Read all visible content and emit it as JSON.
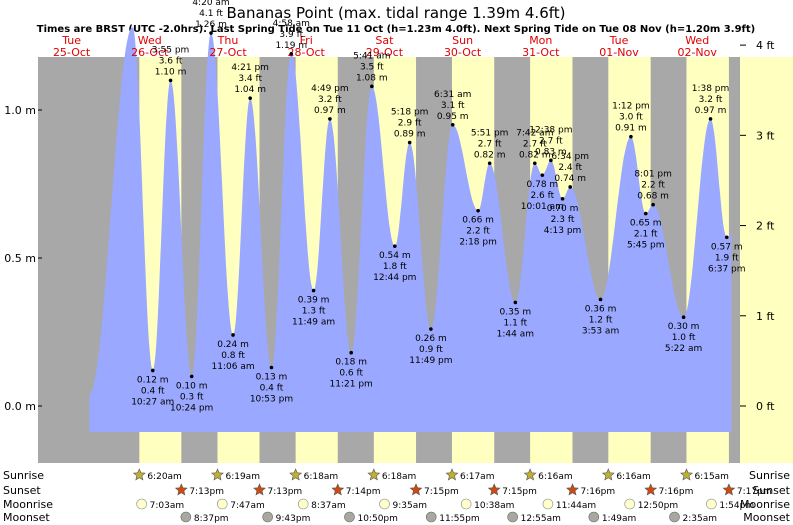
{
  "chart_data": {
    "type": "area",
    "title": "Bananas Point (max. tidal range 1.39m 4.6ft)",
    "subtitle": "Times are BRST (UTC -2.0hrs). Last Spring Tide on Tue 11 Oct (h=1.23m 4.0ft). Next Spring Tide on Tue 08 Nov (h=1.20m 3.9ft)",
    "xlabel": "",
    "ylabel_left_unit": "m",
    "ylabel_right_unit": "ft",
    "ylim": [
      -0.13,
      1.42
    ],
    "xlim_hours": [
      0,
      216
    ],
    "grid": false,
    "legend": "none",
    "colors": {
      "water": "#9aa8ff",
      "day": "#ffffc0",
      "night": "#a8a8a8",
      "red_text": "#e00000",
      "sun_star": "#c0b030",
      "sunset_star": "#d04a10",
      "moon_light": "#ffffcc",
      "moon_dark": "#a8a8a0"
    },
    "days": [
      {
        "dow": "Tue",
        "date": "25-Oct"
      },
      {
        "dow": "Wed",
        "date": "26-Oct"
      },
      {
        "dow": "Thu",
        "date": "27-Oct"
      },
      {
        "dow": "Fri",
        "date": "28-Oct"
      },
      {
        "dow": "Sat",
        "date": "29-Oct"
      },
      {
        "dow": "Sun",
        "date": "30-Oct"
      },
      {
        "dow": "Mon",
        "date": "31-Oct"
      },
      {
        "dow": "Tue",
        "date": "01-Nov"
      },
      {
        "dow": "Wed",
        "date": "02-Nov"
      }
    ],
    "y_ticks_m": [
      {
        "v": 0.0,
        "label": "0.0 m"
      },
      {
        "v": 0.5,
        "label": "0.5 m"
      },
      {
        "v": 1.0,
        "label": "1.0 m"
      }
    ],
    "y_ticks_ft": [
      {
        "v": 0.0,
        "label": "0 ft"
      },
      {
        "v": 0.3048,
        "label": "1 ft"
      },
      {
        "v": 0.6096,
        "label": "2 ft"
      },
      {
        "v": 0.9144,
        "label": "3 ft"
      },
      {
        "v": 1.2192,
        "label": "4 ft"
      }
    ],
    "tides": [
      {
        "type": "low",
        "day": 1,
        "time": "10:27 am",
        "m": 0.12,
        "ft": "0.4 ft",
        "lbl_m": "0.12 m"
      },
      {
        "type": "high",
        "day": 1,
        "time": "3:55 pm",
        "m": 1.1,
        "ft": "3.6 ft",
        "lbl_m": "1.10 m"
      },
      {
        "type": "low",
        "day": 1,
        "time": "10:24 pm",
        "m": 0.1,
        "ft": "0.3 ft",
        "lbl_m": "0.10 m"
      },
      {
        "type": "high",
        "day": 2,
        "time": "4:20 am",
        "m": 1.26,
        "ft": "4.1 ft",
        "lbl_m": "1.26 m"
      },
      {
        "type": "low",
        "day": 2,
        "time": "11:06 am",
        "m": 0.24,
        "ft": "0.8 ft",
        "lbl_m": "0.24 m"
      },
      {
        "type": "high",
        "day": 2,
        "time": "4:21 pm",
        "m": 1.04,
        "ft": "3.4 ft",
        "lbl_m": "1.04 m"
      },
      {
        "type": "low",
        "day": 2,
        "time": "10:53 pm",
        "m": 0.13,
        "ft": "0.4 ft",
        "lbl_m": "0.13 m"
      },
      {
        "type": "high",
        "day": 3,
        "time": "4:58 am",
        "m": 1.19,
        "ft": "3.9 ft",
        "lbl_m": "1.19 m"
      },
      {
        "type": "low",
        "day": 3,
        "time": "11:49 am",
        "m": 0.39,
        "ft": "1.3 ft",
        "lbl_m": "0.39 m"
      },
      {
        "type": "high",
        "day": 3,
        "time": "4:49 pm",
        "m": 0.97,
        "ft": "3.2 ft",
        "lbl_m": "0.97 m"
      },
      {
        "type": "low",
        "day": 3,
        "time": "11:21 pm",
        "m": 0.18,
        "ft": "0.6 ft",
        "lbl_m": "0.18 m"
      },
      {
        "type": "high",
        "day": 4,
        "time": "5:41 am",
        "m": 1.08,
        "ft": "3.5 ft",
        "lbl_m": "1.08 m"
      },
      {
        "type": "low",
        "day": 4,
        "time": "12:44 pm",
        "m": 0.54,
        "ft": "1.8 ft",
        "lbl_m": "0.54 m"
      },
      {
        "type": "high",
        "day": 4,
        "time": "5:18 pm",
        "m": 0.89,
        "ft": "2.9 ft",
        "lbl_m": "0.89 m"
      },
      {
        "type": "low",
        "day": 4,
        "time": "11:49 pm",
        "m": 0.26,
        "ft": "0.9 ft",
        "lbl_m": "0.26 m"
      },
      {
        "type": "high",
        "day": 5,
        "time": "6:31 am",
        "m": 0.95,
        "ft": "3.1 ft",
        "lbl_m": "0.95 m"
      },
      {
        "type": "low",
        "day": 5,
        "time": "2:18 pm",
        "m": 0.66,
        "ft": "2.2 ft",
        "lbl_m": "0.66 m"
      },
      {
        "type": "high",
        "day": 5,
        "time": "5:51 pm",
        "m": 0.82,
        "ft": "2.7 ft",
        "lbl_m": "0.82 m"
      },
      {
        "type": "low",
        "day": 6,
        "time": "1:44 am",
        "m": 0.35,
        "ft": "1.1 ft",
        "lbl_m": "0.35 m"
      },
      {
        "type": "high",
        "day": 6,
        "time": "7:42 am",
        "m": 0.82,
        "ft": "2.7 ft",
        "lbl_m": "0.82 m"
      },
      {
        "type": "low",
        "day": 6,
        "time": "10:01 am",
        "m": 0.78,
        "ft": "2.6 ft",
        "lbl_m": "0.78 m"
      },
      {
        "type": "high",
        "day": 6,
        "time": "12:38 pm",
        "m": 0.83,
        "ft": "2.7 ft",
        "lbl_m": "0.83 m"
      },
      {
        "type": "low",
        "day": 6,
        "time": "4:13 pm",
        "m": 0.7,
        "ft": "2.3 ft",
        "lbl_m": "0.70 m"
      },
      {
        "type": "high",
        "day": 6,
        "time": "6:34 pm",
        "m": 0.74,
        "ft": "2.4 ft",
        "lbl_m": "0.74 m"
      },
      {
        "type": "low",
        "day": 7,
        "time": "3:53 am",
        "m": 0.36,
        "ft": "1.2 ft",
        "lbl_m": "0.36 m"
      },
      {
        "type": "high",
        "day": 7,
        "time": "1:12 pm",
        "m": 0.91,
        "ft": "3.0 ft",
        "lbl_m": "0.91 m"
      },
      {
        "type": "low",
        "day": 7,
        "time": "5:45 pm",
        "m": 0.65,
        "ft": "2.1 ft",
        "lbl_m": "0.65 m"
      },
      {
        "type": "high",
        "day": 7,
        "time": "8:01 pm",
        "m": 0.68,
        "ft": "2.2 ft",
        "lbl_m": "0.68 m"
      },
      {
        "type": "low",
        "day": 8,
        "time": "5:22 am",
        "m": 0.3,
        "ft": "1.0 ft",
        "lbl_m": "0.30 m"
      },
      {
        "type": "high",
        "day": 8,
        "time": "1:38 pm",
        "m": 0.97,
        "ft": "3.2 ft",
        "lbl_m": "0.97 m"
      },
      {
        "type": "low",
        "day": 8,
        "time": "6:37 pm",
        "m": 0.57,
        "ft": "1.9 ft",
        "lbl_m": "0.57 m"
      }
    ],
    "sunrise": [
      "6:20am",
      "6:19am",
      "6:18am",
      "6:18am",
      "6:17am",
      "6:16am",
      "6:16am",
      "6:15am"
    ],
    "sunset": [
      "7:13pm",
      "7:13pm",
      "7:14pm",
      "7:15pm",
      "7:15pm",
      "7:16pm",
      "7:16pm",
      "7:17pm"
    ],
    "moonrise": [
      "7:03am",
      "7:47am",
      "8:37am",
      "9:35am",
      "10:38am",
      "11:44am",
      "12:50pm",
      "1:54pm"
    ],
    "moonset": [
      "8:37pm",
      "9:43pm",
      "10:50pm",
      "11:55pm",
      "12:55am",
      "1:49am",
      "2:35am"
    ],
    "moonset_day": [
      1,
      2,
      3,
      4,
      6,
      7,
      8
    ],
    "row_labels": {
      "sunrise": "Sunrise",
      "sunset": "Sunset",
      "moonrise": "Moonrise",
      "moonset": "Moonset"
    }
  }
}
